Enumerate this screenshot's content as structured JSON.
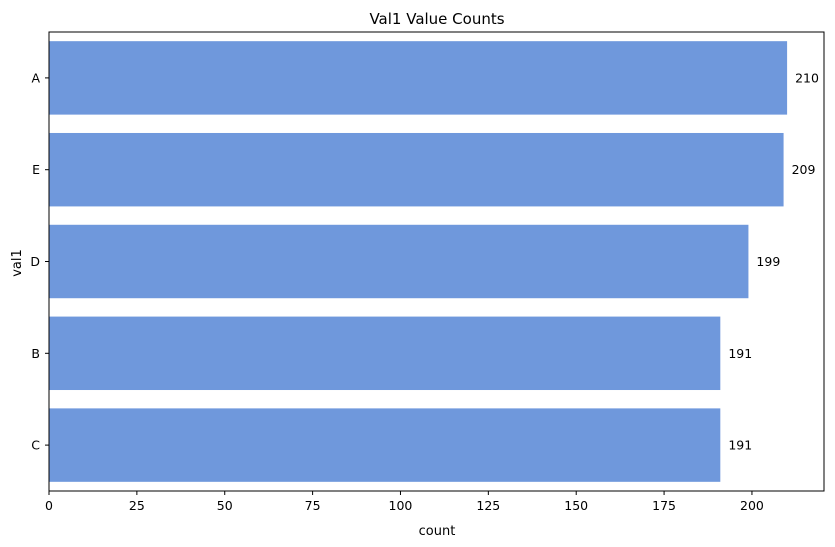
{
  "chart_data": {
    "type": "bar",
    "orientation": "horizontal",
    "title": "Val1 Value Counts",
    "xlabel": "count",
    "ylabel": "val1",
    "categories": [
      "A",
      "E",
      "D",
      "B",
      "C"
    ],
    "values": [
      210,
      209,
      199,
      191,
      191
    ],
    "data_labels": [
      "210",
      "209",
      "199",
      "191",
      "191"
    ],
    "xlim": [
      0,
      220.5
    ],
    "xticks": [
      0,
      25,
      50,
      75,
      100,
      125,
      150,
      175,
      200
    ],
    "xtick_labels": [
      "0",
      "25",
      "50",
      "75",
      "100",
      "125",
      "150",
      "175",
      "200"
    ],
    "bar_color": "#6f98dc",
    "grid": false,
    "legend": "none"
  }
}
